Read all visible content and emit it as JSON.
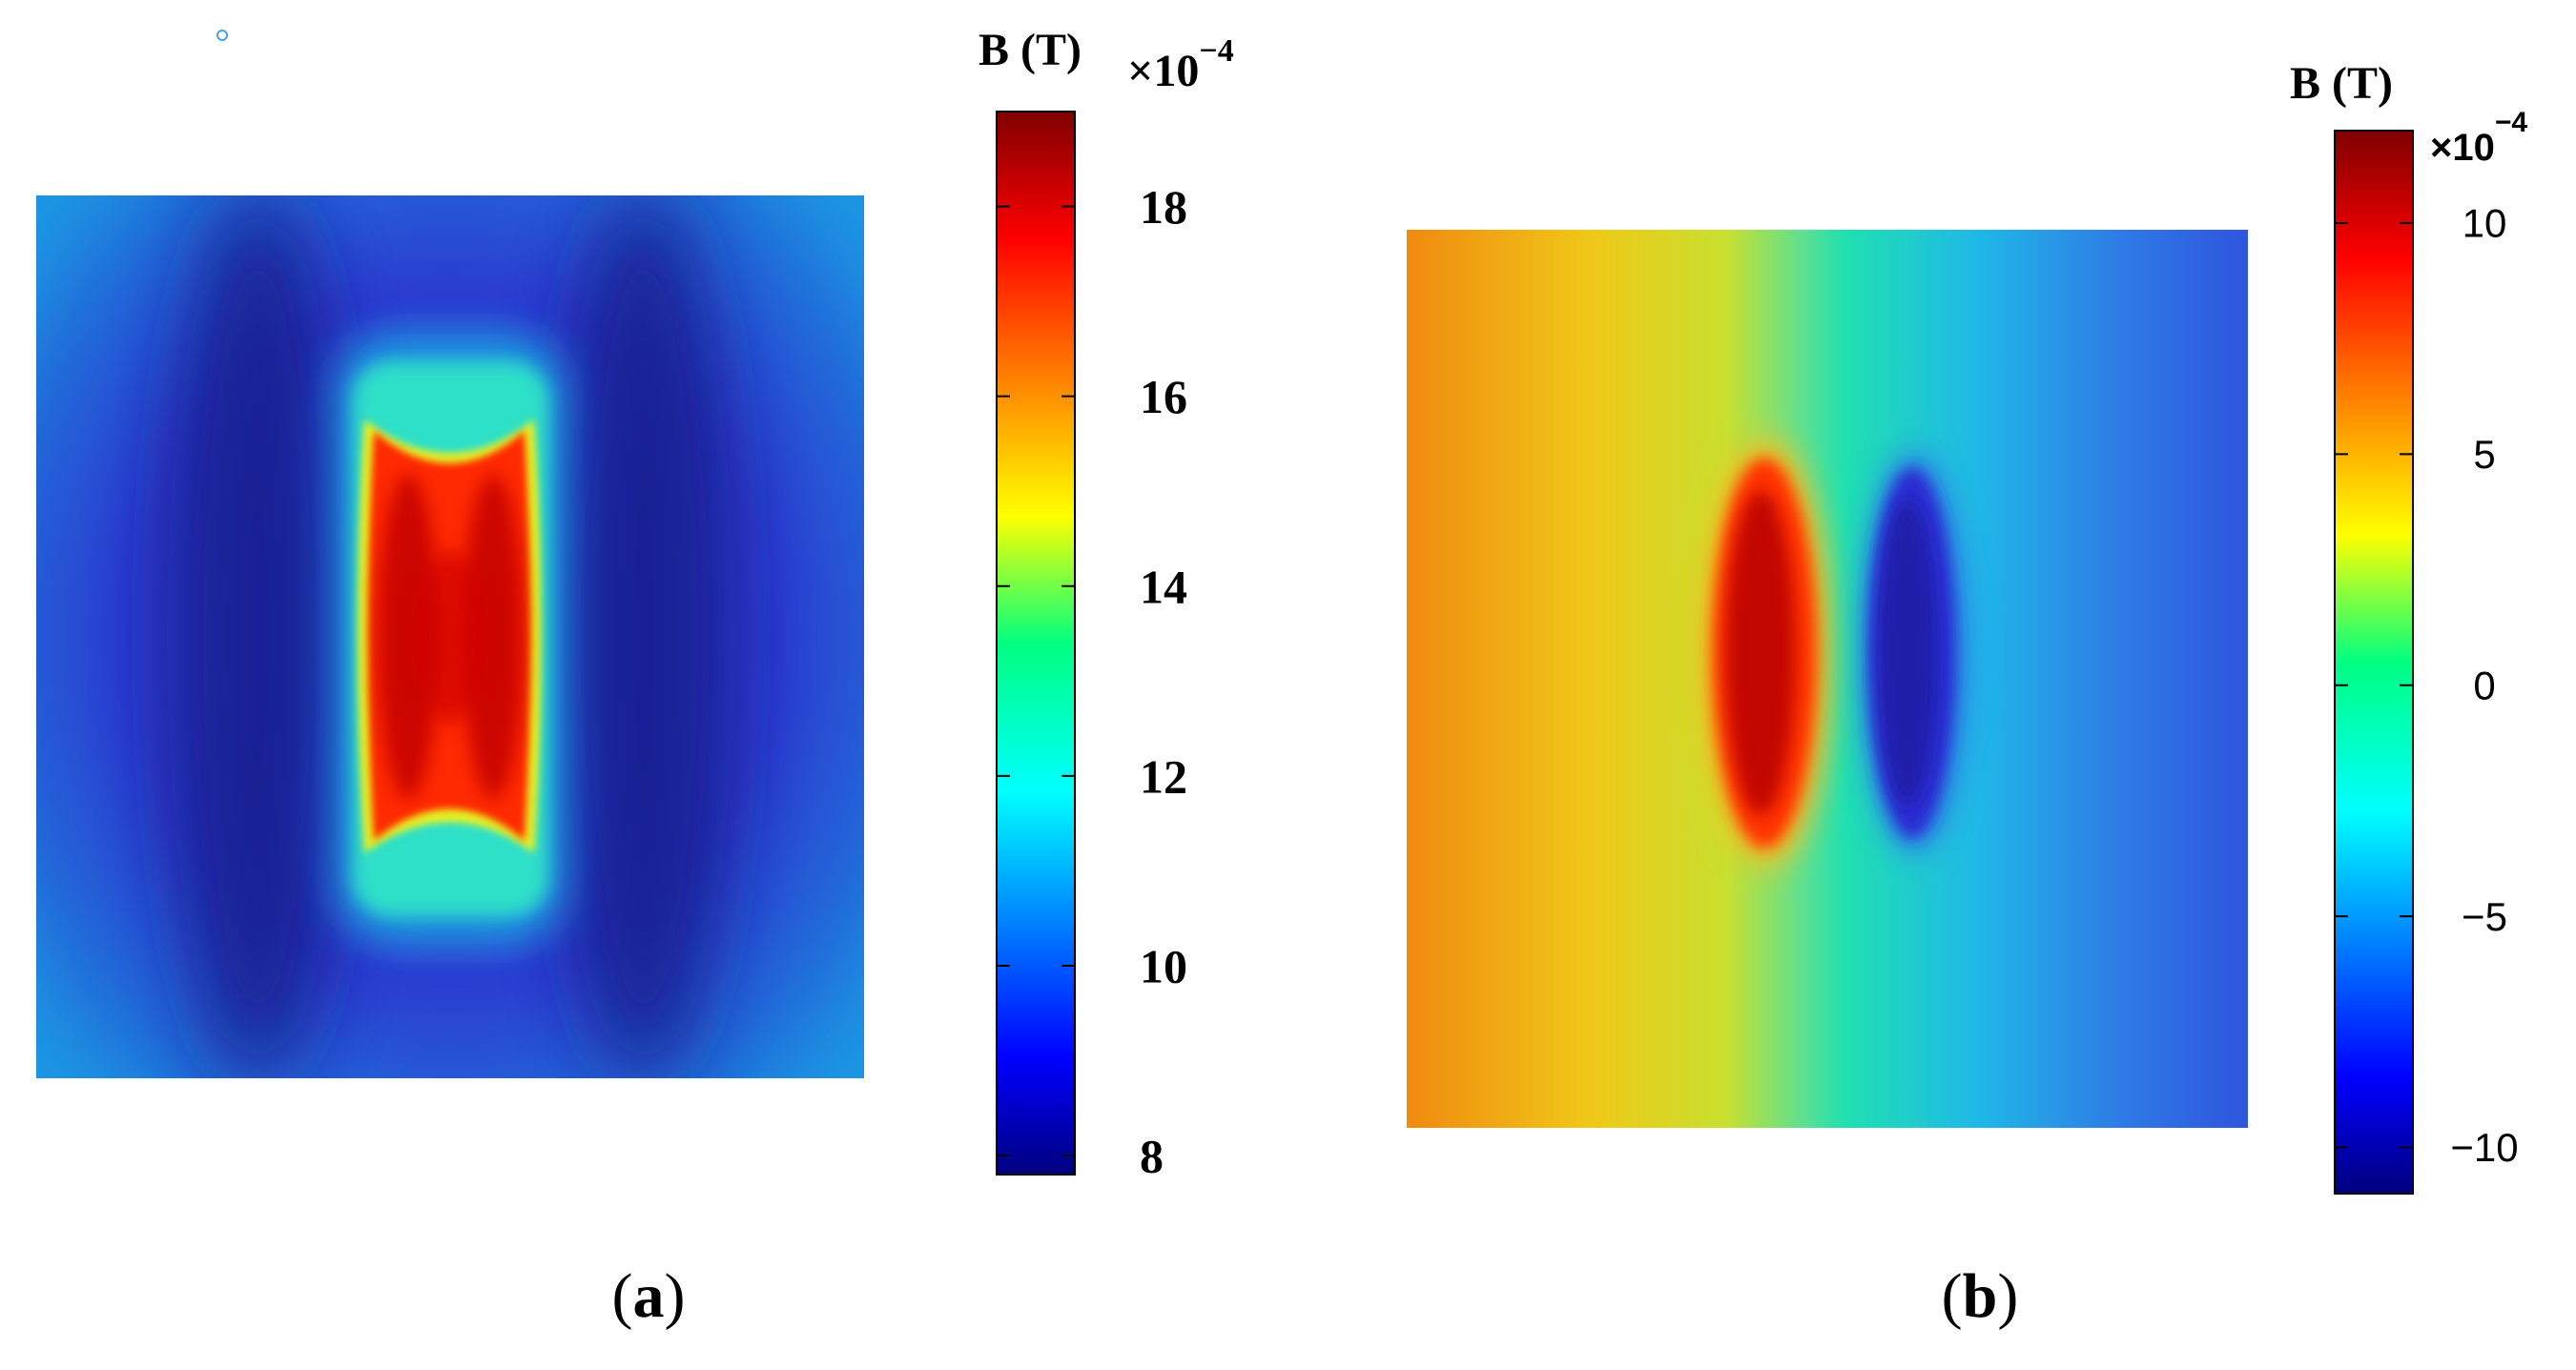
{
  "chart_data": [
    {
      "panel": "(a)",
      "panel_letter": "a",
      "type": "heatmap",
      "colorbar": {
        "title": "B (T)",
        "multiplier_base": "×10",
        "multiplier_exponent": "−4",
        "range": [
          7.8,
          19.0
        ],
        "ticks": [
          8,
          10,
          12,
          14,
          16,
          18
        ],
        "tick_labels": [
          "8",
          "10",
          "12",
          "14",
          "16",
          "18"
        ],
        "colormap": "jet"
      },
      "field_description": "Field map: high-field (~18–19) rectangular region with concave ends in centre, low-field (~8) dark bands on both sides, ~10–11 toward edges"
    },
    {
      "panel": "(b)",
      "panel_letter": "b",
      "type": "heatmap",
      "colorbar": {
        "title": "B (T)",
        "multiplier_base": "×10",
        "multiplier_exponent": "−4",
        "range": [
          -11,
          12
        ],
        "ticks": [
          -10,
          -5,
          0,
          5,
          10
        ],
        "tick_labels": [
          "−10",
          "−5",
          "0",
          "5",
          "10"
        ],
        "colormap": "jet"
      },
      "field_description": "Field map: positive (~12) elliptical lobe left of centre, negative (~-10) elliptical lobe right of centre, background gradient from ~7 on left to ~-7 on right"
    }
  ]
}
